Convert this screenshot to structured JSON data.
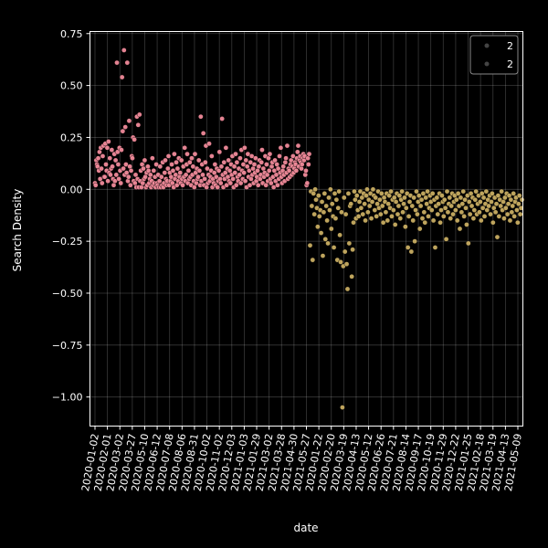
{
  "chart_data": {
    "type": "scatter",
    "xlabel": "date",
    "ylabel": "Search Density",
    "ylim": [
      -1.14,
      0.76
    ],
    "y_ticks": [
      0.75,
      0.5,
      0.25,
      0.0,
      -0.25,
      -0.5,
      -0.75,
      -1.0
    ],
    "y_tick_labels": [
      "0.75",
      "0.50",
      "0.25",
      "0.00",
      "−0.25",
      "−0.50",
      "−0.75",
      "−1.00"
    ],
    "x_tick_labels": [
      "2020-01-02",
      "2020-02-01",
      "2020-03-02",
      "2020-03-27",
      "2020-05-10",
      "2020-06-12",
      "2020-07-08",
      "2020-08-06",
      "2020-08-31",
      "2020-10-02",
      "2020-11-02",
      "2020-12-03",
      "2021-01-03",
      "2021-01-29",
      "2021-03-02",
      "2021-03-28",
      "2021-04-30",
      "2021-05-27",
      "2020-01-22",
      "2020-02-20",
      "2020-03-19",
      "2020-04-13",
      "2020-05-12",
      "2020-06-26",
      "2020-07-21",
      "2020-08-14",
      "2020-09-17",
      "2020-10-19",
      "2020-11-29",
      "2020-12-22",
      "2021-01-25",
      "2021-02-18",
      "2021-03-19",
      "2021-04-13",
      "2021-05-09"
    ],
    "grid": true,
    "legend_position": "top-right",
    "legend": [
      "2",
      "2"
    ],
    "series": [
      {
        "color": "#f08a9a",
        "date_range": [
          "2020-01-02",
          "2021-05-31"
        ],
        "values": [
          0.03,
          0.02,
          0.14,
          0.12,
          0.11,
          0.15,
          0.09,
          0.18,
          0.05,
          0.2,
          0.1,
          0.03,
          0.16,
          0.21,
          0.06,
          0.06,
          0.22,
          0.12,
          0.09,
          0.2,
          0.04,
          0.23,
          0.08,
          0.15,
          0.07,
          0.1,
          0.19,
          0.11,
          0.05,
          0.02,
          0.17,
          0.04,
          0.14,
          0.07,
          0.61,
          0.18,
          0.12,
          0.05,
          0.2,
          0.09,
          0.03,
          0.19,
          0.54,
          0.28,
          0.1,
          0.67,
          0.07,
          0.3,
          0.12,
          0.08,
          0.61,
          0.04,
          0.06,
          0.33,
          0.11,
          0.02,
          0.09,
          0.16,
          0.15,
          0.25,
          0.04,
          0.24,
          0.03,
          0.07,
          0.01,
          0.35,
          0.05,
          0.31,
          0.01,
          0.36,
          0.04,
          0.09,
          0.01,
          0.12,
          0.03,
          0.1,
          0.05,
          0.14,
          0.06,
          0.01,
          0.08,
          0.02,
          0.11,
          0.09,
          0.03,
          0.05,
          0.07,
          0.01,
          0.04,
          0.15,
          0.02,
          0.09,
          0.03,
          0.06,
          0.01,
          0.12,
          0.03,
          0.02,
          0.07,
          0.01,
          0.04,
          0.11,
          0.01,
          0.06,
          0.02,
          0.13,
          0.01,
          0.03,
          0.08,
          0.14,
          0.05,
          0.02,
          0.04,
          0.1,
          0.16,
          0.02,
          0.08,
          0.04,
          0.06,
          0.12,
          0.03,
          0.09,
          0.01,
          0.17,
          0.05,
          0.07,
          0.13,
          0.02,
          0.1,
          0.04,
          0.15,
          0.06,
          0.08,
          0.03,
          0.14,
          0.05,
          0.02,
          0.11,
          0.06,
          0.2,
          0.04,
          0.07,
          0.12,
          0.17,
          0.03,
          0.09,
          0.05,
          0.13,
          0.06,
          0.02,
          0.15,
          0.07,
          0.11,
          0.04,
          0.01,
          0.17,
          0.08,
          0.03,
          0.1,
          0.05,
          0.06,
          0.14,
          0.09,
          0.02,
          0.35,
          0.04,
          0.12,
          0.07,
          0.27,
          0.02,
          0.05,
          0.13,
          0.21,
          0.01,
          0.1,
          0.03,
          0.07,
          0.22,
          0.04,
          0.06,
          0.09,
          0.16,
          0.01,
          0.05,
          0.03,
          0.08,
          0.12,
          0.02,
          0.06,
          0.1,
          0.01,
          0.04,
          0.09,
          0.18,
          0.05,
          0.03,
          0.11,
          0.34,
          0.07,
          0.01,
          0.13,
          0.05,
          0.08,
          0.2,
          0.02,
          0.1,
          0.06,
          0.14,
          0.04,
          0.09,
          0.03,
          0.12,
          0.07,
          0.16,
          0.05,
          0.01,
          0.11,
          0.08,
          0.17,
          0.02,
          0.13,
          0.06,
          0.04,
          0.1,
          0.07,
          0.15,
          0.03,
          0.19,
          0.09,
          0.05,
          0.12,
          0.08,
          0.2,
          0.04,
          0.14,
          0.01,
          0.11,
          0.17,
          0.06,
          0.09,
          0.02,
          0.13,
          0.05,
          0.16,
          0.07,
          0.1,
          0.03,
          0.12,
          0.08,
          0.15,
          0.04,
          0.06,
          0.09,
          0.02,
          0.11,
          0.14,
          0.05,
          0.07,
          0.13,
          0.19,
          0.03,
          0.1,
          0.06,
          0.08,
          0.16,
          0.02,
          0.12,
          0.07,
          0.04,
          0.15,
          0.09,
          0.17,
          0.05,
          0.03,
          0.11,
          0.13,
          0.06,
          0.01,
          0.09,
          0.14,
          0.04,
          0.07,
          0.12,
          0.02,
          0.1,
          0.05,
          0.16,
          0.08,
          0.2,
          0.06,
          0.03,
          0.09,
          0.11,
          0.07,
          0.04,
          0.13,
          0.15,
          0.08,
          0.21,
          0.05,
          0.1,
          0.09,
          0.06,
          0.12,
          0.14,
          0.07,
          0.11,
          0.16,
          0.08,
          0.1,
          0.13,
          0.12,
          0.09,
          0.15,
          0.18,
          0.21,
          0.11,
          0.14,
          0.16,
          0.13,
          0.1,
          0.12,
          0.15,
          0.17,
          0.14,
          0.16,
          0.07,
          0.09,
          0.02,
          0.03,
          0.15,
          0.12,
          0.17
        ]
      },
      {
        "color": "#c8ad62",
        "date_range": [
          "2020-01-22",
          "2021-05-09"
        ],
        "values": [
          -0.27,
          -0.01,
          -0.08,
          -0.34,
          -0.02,
          -0.12,
          0.0,
          -0.05,
          -0.09,
          -0.18,
          -0.03,
          -0.13,
          -0.1,
          -0.21,
          -0.06,
          -0.32,
          -0.11,
          -0.02,
          -0.24,
          -0.08,
          -0.15,
          -0.26,
          -0.04,
          -0.1,
          0.0,
          -0.19,
          -0.07,
          -0.13,
          -0.28,
          -0.02,
          -0.14,
          -0.05,
          -0.34,
          -0.09,
          -0.01,
          -0.22,
          -0.35,
          -0.11,
          -1.05,
          -0.37,
          -0.04,
          -0.3,
          -0.12,
          -0.36,
          -0.48,
          -0.02,
          -0.26,
          -0.08,
          -0.07,
          -0.42,
          -0.29,
          -0.16,
          -0.01,
          -0.05,
          -0.14,
          -0.03,
          -0.1,
          -0.13,
          -0.06,
          -0.01,
          -0.09,
          -0.04,
          -0.12,
          -0.02,
          -0.07,
          -0.15,
          -0.03,
          0.0,
          -0.11,
          -0.05,
          -0.08,
          -0.02,
          -0.14,
          -0.06,
          0.0,
          -0.03,
          -0.1,
          -0.04,
          -0.13,
          -0.07,
          -0.01,
          -0.09,
          -0.05,
          -0.12,
          -0.02,
          -0.08,
          -0.16,
          -0.04,
          -0.06,
          -0.11,
          -0.02,
          -0.15,
          -0.07,
          -0.03,
          -0.09,
          -0.01,
          -0.13,
          -0.05,
          -0.1,
          -0.04,
          -0.17,
          -0.06,
          -0.02,
          -0.12,
          -0.08,
          -0.03,
          -0.14,
          -0.05,
          -0.01,
          -0.11,
          -0.07,
          -0.04,
          -0.18,
          -0.09,
          -0.02,
          -0.28,
          -0.13,
          -0.06,
          -0.03,
          -0.3,
          -0.08,
          -0.15,
          -0.04,
          -0.25,
          -0.1,
          -0.01,
          -0.12,
          -0.06,
          -0.03,
          -0.19,
          -0.08,
          -0.05,
          -0.14,
          -0.02,
          -0.11,
          -0.16,
          -0.04,
          -0.07,
          -0.01,
          -0.13,
          -0.09,
          -0.03,
          -0.06,
          -0.1,
          -0.02,
          -0.15,
          -0.05,
          -0.28,
          -0.08,
          -0.04,
          -0.12,
          -0.07,
          -0.02,
          -0.16,
          -0.1,
          -0.03,
          -0.06,
          -0.13,
          -0.05,
          -0.09,
          -0.24,
          -0.01,
          -0.11,
          -0.07,
          -0.04,
          -0.14,
          -0.08,
          -0.02,
          -0.12,
          -0.06,
          -0.03,
          -0.1,
          -0.05,
          -0.15,
          -0.02,
          -0.08,
          -0.19,
          -0.04,
          -0.11,
          -0.07,
          -0.01,
          -0.13,
          -0.05,
          -0.09,
          -0.17,
          -0.03,
          -0.26,
          -0.06,
          -0.12,
          -0.02,
          -0.08,
          -0.04,
          -0.14,
          -0.1,
          -0.05,
          -0.01,
          -0.12,
          -0.07,
          -0.03,
          -0.11,
          -0.06,
          -0.15,
          -0.02,
          -0.09,
          -0.04,
          -0.13,
          -0.07,
          -0.01,
          -0.1,
          -0.05,
          -0.08,
          -0.03,
          -0.12,
          -0.06,
          -0.02,
          -0.16,
          -0.09,
          -0.04,
          -0.11,
          -0.07,
          -0.23,
          -0.03,
          -0.13,
          -0.05,
          -0.08,
          -0.01,
          -0.1,
          -0.06,
          -0.14,
          -0.04,
          -0.09,
          -0.02,
          -0.12,
          -0.07,
          -0.03,
          -0.15,
          -0.05,
          -0.11,
          -0.08,
          -0.02,
          -0.13,
          -0.06,
          -0.04,
          -0.1,
          -0.16,
          -0.07,
          -0.03,
          -0.12,
          -0.09,
          -0.05
        ]
      }
    ]
  }
}
